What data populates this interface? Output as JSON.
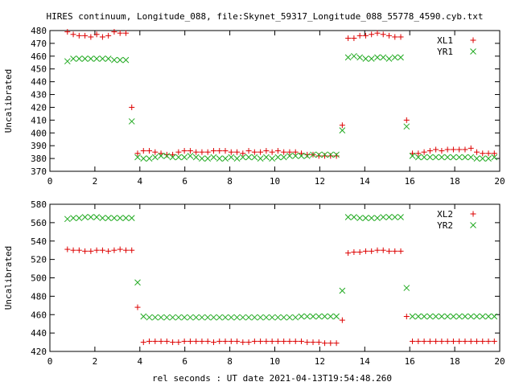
{
  "figure": {
    "title": "HIRES continuum, Longitude_088, file:Skynet_59317_Longitude_088_55778_4590.cyb.txt",
    "xlabel": "rel seconds : UT date 2021-04-13T19:54:48.260"
  },
  "colors": {
    "red": "#dd0000",
    "green": "#22aa22",
    "axis": "#000000"
  },
  "chart_data": [
    {
      "type": "scatter",
      "title": "HIRES continuum, Longitude_088, file:Skynet_59317_Longitude_088_55778_4590.cyb.txt",
      "xlabel": "",
      "ylabel": "Uncalibrated",
      "xlim": [
        0,
        20
      ],
      "ylim": [
        370,
        480
      ],
      "xticks": [
        0,
        2,
        4,
        6,
        8,
        10,
        12,
        14,
        16,
        18,
        20
      ],
      "yticks": [
        370,
        380,
        390,
        400,
        410,
        420,
        430,
        440,
        450,
        460,
        470,
        480
      ],
      "legend_position": "top-right",
      "grid": false,
      "series": [
        {
          "name": "XL1",
          "marker": "plus",
          "color": "#dd0000",
          "x": [
            0.78,
            1.04,
            1.3,
            1.56,
            1.82,
            2.08,
            2.34,
            2.6,
            2.86,
            3.12,
            3.38,
            3.64,
            3.9,
            4.16,
            4.42,
            4.68,
            4.94,
            5.2,
            5.46,
            5.72,
            5.98,
            6.24,
            6.5,
            6.76,
            7.02,
            7.28,
            7.54,
            7.8,
            8.06,
            8.32,
            8.58,
            8.84,
            9.1,
            9.36,
            9.62,
            9.88,
            10.14,
            10.4,
            10.66,
            10.92,
            11.18,
            11.44,
            11.7,
            11.96,
            12.22,
            12.48,
            12.74,
            13.0,
            13.26,
            13.52,
            13.78,
            14.04,
            14.3,
            14.56,
            14.82,
            15.08,
            15.34,
            15.6,
            15.86,
            16.12,
            16.38,
            16.64,
            16.9,
            17.16,
            17.42,
            17.68,
            17.94,
            18.2,
            18.46,
            18.72,
            18.98,
            19.24,
            19.5,
            19.76
          ],
          "y": [
            479,
            477,
            476,
            476,
            475,
            477,
            475,
            476,
            479,
            478,
            478,
            420,
            384,
            386,
            386,
            385,
            384,
            383,
            383,
            385,
            386,
            386,
            385,
            385,
            385,
            386,
            386,
            386,
            385,
            385,
            384,
            386,
            385,
            385,
            386,
            385,
            386,
            385,
            385,
            385,
            384,
            383,
            383,
            382,
            382,
            382,
            382,
            406,
            474,
            474,
            476,
            476,
            477,
            478,
            477,
            476,
            475,
            475,
            410,
            384,
            384,
            385,
            386,
            387,
            386,
            387,
            387,
            387,
            387,
            388,
            385,
            384,
            384,
            384
          ],
          "y_note": ""
        },
        {
          "name": "YR1",
          "marker": "cross",
          "color": "#22aa22",
          "x": [
            0.78,
            1.04,
            1.3,
            1.56,
            1.82,
            2.08,
            2.34,
            2.6,
            2.86,
            3.12,
            3.38,
            3.64,
            3.9,
            4.16,
            4.42,
            4.68,
            4.94,
            5.2,
            5.46,
            5.72,
            5.98,
            6.24,
            6.5,
            6.76,
            7.02,
            7.28,
            7.54,
            7.8,
            8.06,
            8.32,
            8.58,
            8.84,
            9.1,
            9.36,
            9.62,
            9.88,
            10.14,
            10.4,
            10.66,
            10.92,
            11.18,
            11.44,
            11.7,
            11.96,
            12.22,
            12.48,
            12.74,
            13.0,
            13.26,
            13.52,
            13.78,
            14.04,
            14.3,
            14.56,
            14.82,
            15.08,
            15.34,
            15.6,
            15.86,
            16.12,
            16.38,
            16.64,
            16.9,
            17.16,
            17.42,
            17.68,
            17.94,
            18.2,
            18.46,
            18.72,
            18.98,
            19.24,
            19.5,
            19.76
          ],
          "y": [
            456,
            458,
            458,
            458,
            458,
            458,
            458,
            458,
            457,
            457,
            457,
            409,
            381,
            380,
            380,
            381,
            382,
            382,
            381,
            381,
            381,
            382,
            381,
            380,
            380,
            381,
            380,
            380,
            381,
            380,
            381,
            381,
            381,
            380,
            381,
            380,
            381,
            381,
            382,
            382,
            382,
            382,
            383,
            383,
            383,
            383,
            383,
            402,
            459,
            460,
            459,
            458,
            458,
            459,
            459,
            458,
            459,
            459,
            405,
            382,
            381,
            381,
            381,
            381,
            381,
            381,
            381,
            381,
            381,
            381,
            380,
            380,
            380,
            381
          ]
        }
      ]
    },
    {
      "type": "scatter",
      "title": "",
      "xlabel": "rel seconds : UT date 2021-04-13T19:54:48.260",
      "ylabel": "Uncalibrated",
      "xlim": [
        0,
        20
      ],
      "ylim": [
        420,
        580
      ],
      "xticks": [
        0,
        2,
        4,
        6,
        8,
        10,
        12,
        14,
        16,
        18,
        20
      ],
      "yticks": [
        420,
        440,
        460,
        480,
        500,
        520,
        540,
        560,
        580
      ],
      "legend_position": "top-right",
      "grid": false,
      "series": [
        {
          "name": "XL2",
          "marker": "plus",
          "color": "#dd0000",
          "x": [
            0.78,
            1.04,
            1.3,
            1.56,
            1.82,
            2.08,
            2.34,
            2.6,
            2.86,
            3.12,
            3.38,
            3.64,
            3.9,
            4.16,
            4.42,
            4.68,
            4.94,
            5.2,
            5.46,
            5.72,
            5.98,
            6.24,
            6.5,
            6.76,
            7.02,
            7.28,
            7.54,
            7.8,
            8.06,
            8.32,
            8.58,
            8.84,
            9.1,
            9.36,
            9.62,
            9.88,
            10.14,
            10.4,
            10.66,
            10.92,
            11.18,
            11.44,
            11.7,
            11.96,
            12.22,
            12.48,
            12.74,
            13.0,
            13.26,
            13.52,
            13.78,
            14.04,
            14.3,
            14.56,
            14.82,
            15.08,
            15.34,
            15.6,
            15.86,
            16.12,
            16.38,
            16.64,
            16.9,
            17.16,
            17.42,
            17.68,
            17.94,
            18.2,
            18.46,
            18.72,
            18.98,
            19.24,
            19.5,
            19.76
          ],
          "y": [
            531,
            530,
            530,
            529,
            529,
            530,
            530,
            529,
            530,
            531,
            530,
            530,
            468,
            430,
            431,
            431,
            431,
            431,
            430,
            430,
            431,
            431,
            431,
            431,
            431,
            430,
            431,
            431,
            431,
            431,
            430,
            430,
            431,
            431,
            431,
            431,
            431,
            431,
            431,
            431,
            431,
            430,
            430,
            430,
            429,
            429,
            429,
            454,
            527,
            528,
            528,
            529,
            529,
            530,
            530,
            529,
            529,
            529,
            458,
            431,
            431,
            431,
            431,
            431,
            431,
            431,
            431,
            431,
            431,
            431,
            431,
            431,
            431,
            431
          ]
        },
        {
          "name": "YR2",
          "marker": "cross",
          "color": "#22aa22",
          "x": [
            0.78,
            1.04,
            1.3,
            1.56,
            1.82,
            2.08,
            2.34,
            2.6,
            2.86,
            3.12,
            3.38,
            3.64,
            3.9,
            4.16,
            4.42,
            4.68,
            4.94,
            5.2,
            5.46,
            5.72,
            5.98,
            6.24,
            6.5,
            6.76,
            7.02,
            7.28,
            7.54,
            7.8,
            8.06,
            8.32,
            8.58,
            8.84,
            9.1,
            9.36,
            9.62,
            9.88,
            10.14,
            10.4,
            10.66,
            10.92,
            11.18,
            11.44,
            11.7,
            11.96,
            12.22,
            12.48,
            12.74,
            13.0,
            13.26,
            13.52,
            13.78,
            14.04,
            14.3,
            14.56,
            14.82,
            15.08,
            15.34,
            15.6,
            15.86,
            16.12,
            16.38,
            16.64,
            16.9,
            17.16,
            17.42,
            17.68,
            17.94,
            18.2,
            18.46,
            18.72,
            18.98,
            19.24,
            19.5,
            19.76
          ],
          "y": [
            564,
            565,
            565,
            566,
            566,
            566,
            565,
            565,
            565,
            565,
            565,
            565,
            495,
            458,
            457,
            457,
            457,
            457,
            457,
            457,
            457,
            457,
            457,
            457,
            457,
            457,
            457,
            457,
            457,
            457,
            457,
            457,
            457,
            457,
            457,
            457,
            457,
            457,
            457,
            457,
            458,
            458,
            458,
            458,
            458,
            458,
            458,
            486,
            566,
            566,
            565,
            565,
            565,
            565,
            566,
            566,
            566,
            566,
            489,
            458,
            458,
            458,
            458,
            458,
            458,
            458,
            458,
            458,
            458,
            458,
            458,
            458,
            458,
            458
          ]
        }
      ]
    }
  ]
}
